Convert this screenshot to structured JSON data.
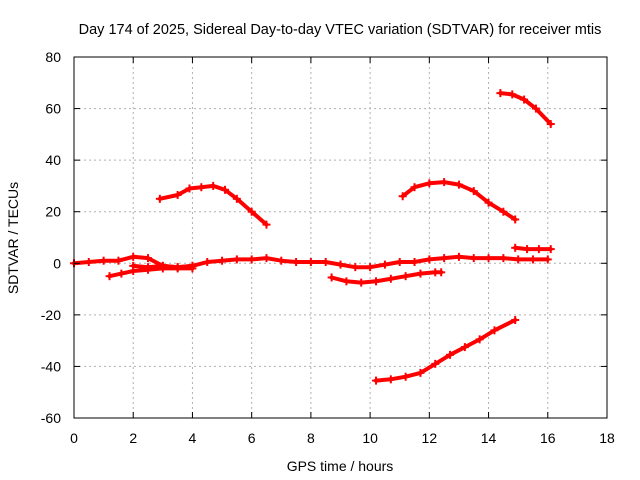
{
  "chart_data": {
    "type": "line",
    "title": "Day 174 of 2025, Sidereal Day-to-day VTEC variation (SDTVAR) for receiver mtis",
    "xlabel": "GPS time / hours",
    "ylabel": "SDTVAR / TECUs",
    "xlim": [
      0,
      18
    ],
    "ylim": [
      -60,
      80
    ],
    "xticks": [
      0,
      2,
      4,
      6,
      8,
      10,
      12,
      14,
      16,
      18
    ],
    "yticks": [
      -60,
      -40,
      -20,
      0,
      20,
      40,
      60,
      80
    ],
    "grid": true,
    "color": "#ff0000",
    "series": [
      {
        "name": "arc-main-near-zero",
        "x": [
          0,
          0.5,
          1.0,
          1.5,
          2.0,
          2.5,
          3.0,
          3.5,
          4.0,
          4.5,
          5.0,
          5.5,
          6.0,
          6.5,
          7.0,
          7.5,
          8.0,
          8.5,
          9.0,
          9.5,
          10.0,
          10.5,
          11.0,
          11.5,
          12.0,
          12.5,
          13.0,
          13.5,
          14.0,
          14.5,
          15.0,
          15.5,
          16.0
        ],
        "y": [
          0,
          0.5,
          1.0,
          1.0,
          2.5,
          2.0,
          -1.0,
          -1.5,
          -1.0,
          0.5,
          1.0,
          1.5,
          1.5,
          2.0,
          1.0,
          0.5,
          0.5,
          0.5,
          -0.5,
          -1.5,
          -1.5,
          -0.5,
          0.5,
          0.5,
          1.5,
          2.0,
          2.5,
          2.0,
          2.0,
          2.0,
          1.5,
          1.5,
          1.5
        ]
      },
      {
        "name": "arc-low-early",
        "x": [
          1.2,
          1.6,
          2.0,
          2.5,
          3.0,
          3.5,
          4.0
        ],
        "y": [
          -5,
          -4,
          -3,
          -2.5,
          -2,
          -2,
          -2
        ]
      },
      {
        "name": "arc-mid-noon",
        "x": [
          2.0,
          2.5,
          3.0,
          3.5,
          4.0
        ],
        "y": [
          -1,
          -1.5,
          -1,
          -1.5,
          -1
        ]
      },
      {
        "name": "arc-morning-hump",
        "x": [
          2.9,
          3.5,
          3.9,
          4.3,
          4.7,
          5.1,
          5.5,
          6.0,
          6.5
        ],
        "y": [
          25,
          26.5,
          29,
          29.5,
          30,
          28.5,
          25,
          20,
          15
        ]
      },
      {
        "name": "arc-afternoon-hump",
        "x": [
          11.1,
          11.5,
          12.0,
          12.5,
          13.0,
          13.5,
          14.0,
          14.5,
          14.9
        ],
        "y": [
          26,
          29.5,
          31,
          31.5,
          30.5,
          28,
          23.5,
          20,
          17
        ]
      },
      {
        "name": "arc-high-evening",
        "x": [
          14.4,
          14.8,
          15.2,
          15.6,
          16.1
        ],
        "y": [
          66,
          65.5,
          63.5,
          60,
          54
        ]
      },
      {
        "name": "arc-evening-6",
        "x": [
          14.9,
          15.3,
          15.7,
          16.1
        ],
        "y": [
          6,
          5.5,
          5.5,
          5.5
        ]
      },
      {
        "name": "arc-dip-minus6",
        "x": [
          8.7,
          9.2,
          9.7,
          10.2,
          10.7,
          11.2,
          11.7,
          12.2,
          12.4
        ],
        "y": [
          -5.5,
          -7,
          -7.5,
          -7,
          -6,
          -5,
          -4,
          -3.5,
          -3.5
        ]
      },
      {
        "name": "arc-rising-negative",
        "x": [
          10.2,
          10.7,
          11.2,
          11.7,
          12.2,
          12.7,
          13.2,
          13.7,
          14.2,
          14.9
        ],
        "y": [
          -45.5,
          -45,
          -44,
          -42.5,
          -39,
          -35.5,
          -32.5,
          -29.5,
          -26,
          -22
        ]
      }
    ]
  }
}
